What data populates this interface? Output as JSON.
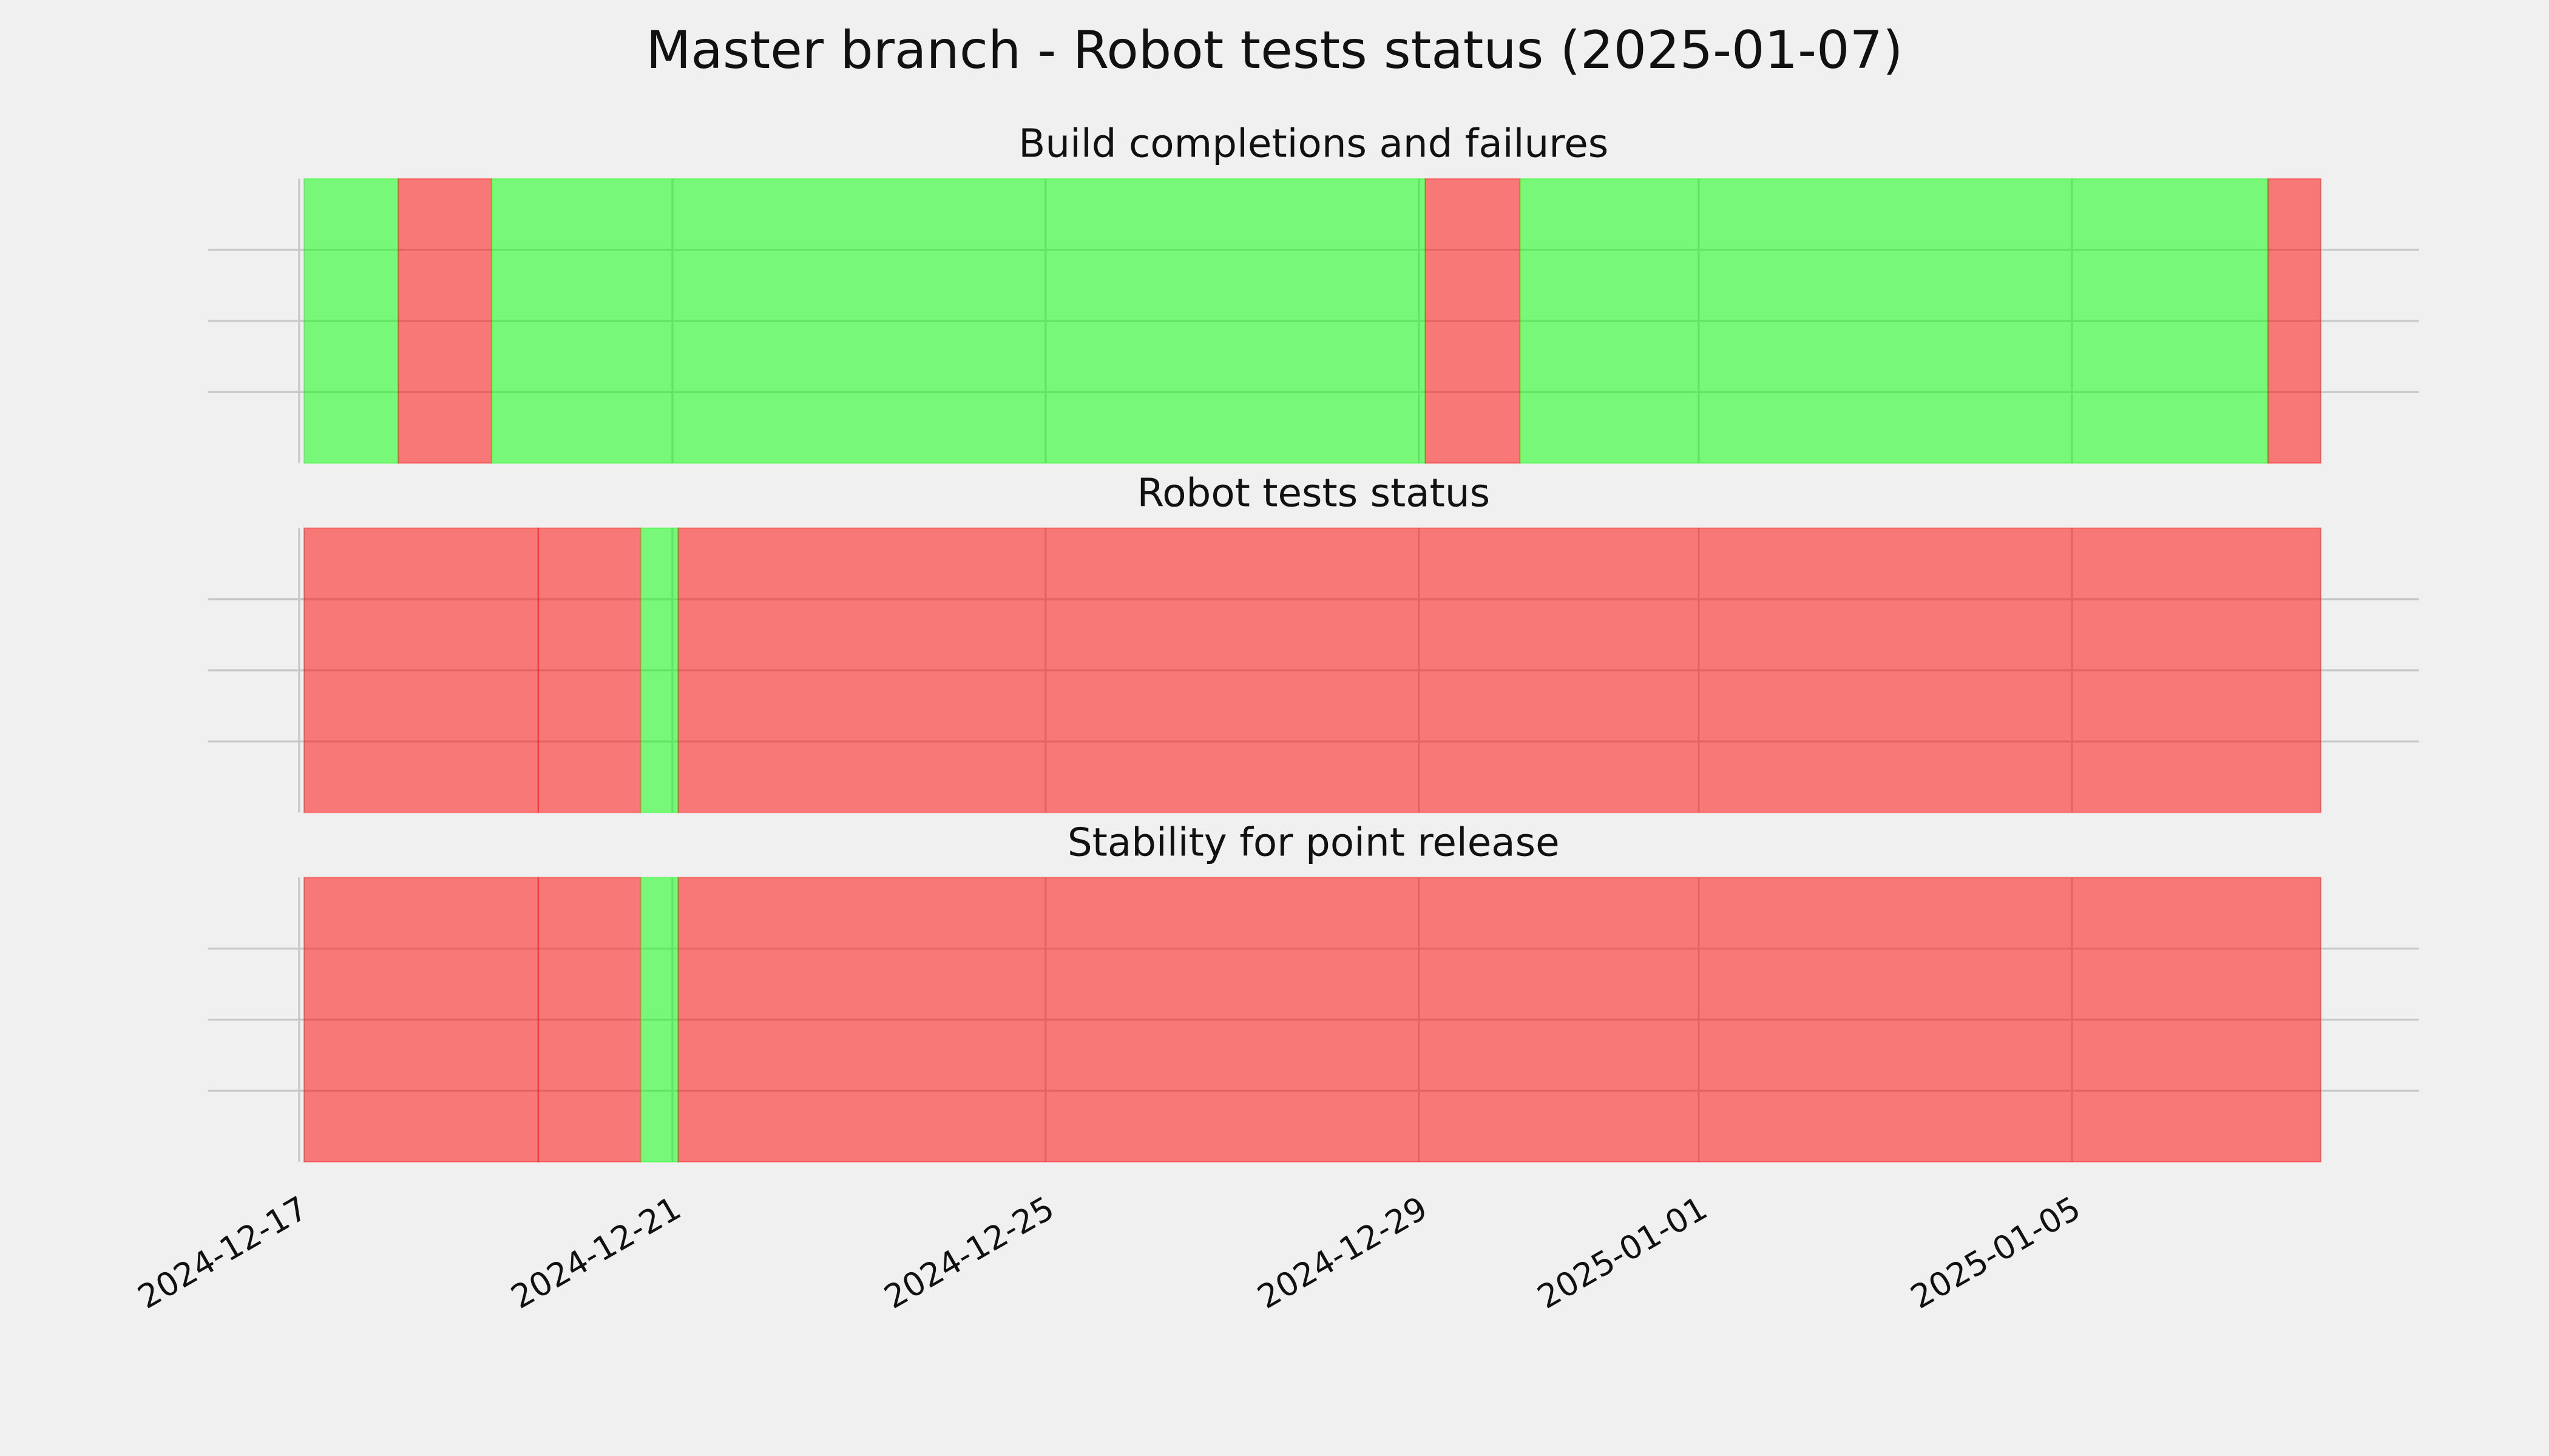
{
  "title": "Master branch - Robot tests status (2025-01-07)",
  "chart_data": [
    {
      "type": "timeline",
      "title": "Build completions and failures",
      "xlim": [
        "2024-12-16T00:35",
        "2025-01-08T17:15"
      ],
      "xticks": [
        "2024-12-17",
        "2024-12-21",
        "2024-12-25",
        "2024-12-29",
        "2025-01-01",
        "2025-01-05"
      ],
      "ylim": [
        0,
        1
      ],
      "yticks": [
        0.25,
        0.5,
        0.75
      ],
      "grid": true,
      "spans": [
        {
          "start": "2024-12-17T01:15",
          "end": "2024-12-18T01:30",
          "color": "#00ff00"
        },
        {
          "start": "2024-12-18T01:30",
          "end": "2024-12-19T01:30",
          "color": "#ff0000"
        },
        {
          "start": "2024-12-19T01:30",
          "end": "2024-12-29T01:40",
          "color": "#00ff00"
        },
        {
          "start": "2024-12-29T01:40",
          "end": "2024-12-30T02:00",
          "color": "#ff0000"
        },
        {
          "start": "2024-12-30T02:00",
          "end": "2025-01-07T02:25",
          "color": "#00ff00"
        },
        {
          "start": "2025-01-07T02:25",
          "end": "2025-01-07T16:00",
          "color": "#ff0000"
        }
      ]
    },
    {
      "type": "timeline",
      "title": "Robot tests status",
      "xlim": [
        "2024-12-16T00:35",
        "2025-01-08T17:15"
      ],
      "xticks": [
        "2024-12-17",
        "2024-12-21",
        "2024-12-25",
        "2024-12-29",
        "2025-01-01",
        "2025-01-05"
      ],
      "ylim": [
        0,
        1
      ],
      "yticks": [
        0.25,
        0.5,
        0.75
      ],
      "grid": true,
      "spans": [
        {
          "start": "2024-12-17T01:15",
          "end": "2024-12-19T13:30",
          "color": "#ff0000"
        },
        {
          "start": "2024-12-19T13:30",
          "end": "2024-12-20T15:50",
          "color": "#ff0000"
        },
        {
          "start": "2024-12-20T15:50",
          "end": "2024-12-21T01:30",
          "color": "#00ff00"
        },
        {
          "start": "2024-12-21T01:30",
          "end": "2025-01-07T16:00",
          "color": "#ff0000"
        }
      ]
    },
    {
      "type": "timeline",
      "title": "Stability for point release",
      "xlim": [
        "2024-12-16T00:35",
        "2025-01-08T17:15"
      ],
      "xticks": [
        "2024-12-17",
        "2024-12-21",
        "2024-12-25",
        "2024-12-29",
        "2025-01-01",
        "2025-01-05"
      ],
      "ylim": [
        0,
        1
      ],
      "yticks": [
        0.25,
        0.5,
        0.75
      ],
      "grid": true,
      "spans": [
        {
          "start": "2024-12-17T01:15",
          "end": "2024-12-19T13:30",
          "color": "#ff0000"
        },
        {
          "start": "2024-12-19T13:30",
          "end": "2024-12-20T15:50",
          "color": "#ff0000"
        },
        {
          "start": "2024-12-20T15:50",
          "end": "2024-12-21T01:30",
          "color": "#00ff00"
        },
        {
          "start": "2024-12-21T01:30",
          "end": "2025-01-07T16:00",
          "color": "#ff0000"
        }
      ]
    }
  ]
}
